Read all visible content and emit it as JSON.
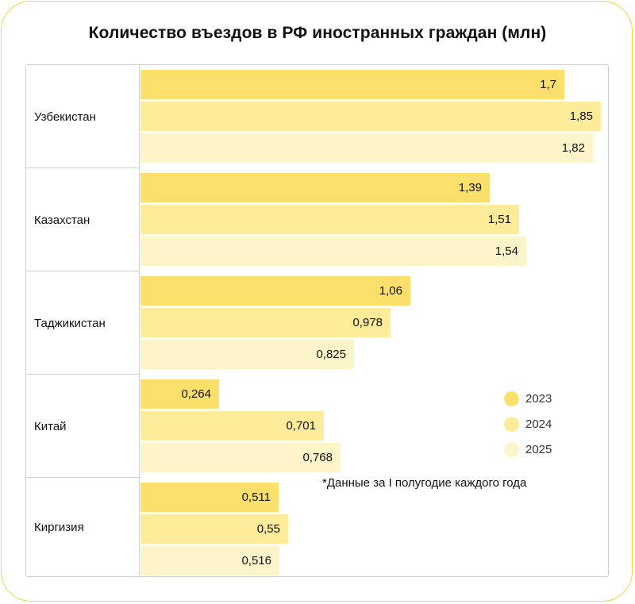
{
  "title": "Количество въездов в РФ иностранных граждан (млн)",
  "note": "*Данные за I полугодие каждого года",
  "colors": {
    "2023": "#fde06c",
    "2024": "#feec9a",
    "2025": "#fef4ca",
    "frame": "#f5d34a"
  },
  "legend": [
    {
      "label": "2023",
      "color": "#fde06c"
    },
    {
      "label": "2024",
      "color": "#feec9a"
    },
    {
      "label": "2025",
      "color": "#fef4ca"
    }
  ],
  "groups": [
    {
      "label": "Узбекистан",
      "values": [
        "1,7",
        "1,85",
        "1,82"
      ]
    },
    {
      "label": "Казахстан",
      "values": [
        "1,39",
        "1,51",
        "1,54"
      ]
    },
    {
      "label": "Таджикистан",
      "values": [
        "1,06",
        "0,978",
        "0,825"
      ]
    },
    {
      "label": "Китай",
      "values": [
        "0,264",
        "0,701",
        "0,768"
      ]
    },
    {
      "label": "Киргизия",
      "values": [
        "0,511",
        "0,55",
        "0,516"
      ]
    }
  ],
  "chart_data": {
    "type": "bar",
    "orientation": "horizontal",
    "title": "Количество въездов в РФ иностранных граждан (млн)",
    "categories": [
      "Узбекистан",
      "Казахстан",
      "Таджикистан",
      "Китай",
      "Киргизия"
    ],
    "series": [
      {
        "name": "2023",
        "values": [
          1.7,
          1.39,
          1.06,
          0.264,
          0.511
        ]
      },
      {
        "name": "2024",
        "values": [
          1.85,
          1.51,
          0.978,
          0.701,
          0.55
        ]
      },
      {
        "name": "2025",
        "values": [
          1.82,
          1.54,
          0.825,
          0.768,
          0.516
        ]
      }
    ],
    "xlabel": "",
    "ylabel": "",
    "unit": "млн",
    "data_labels": true,
    "grid": false,
    "legend_position": "bottom-right inside",
    "annotation": "*Данные за I полугодие каждого года"
  }
}
